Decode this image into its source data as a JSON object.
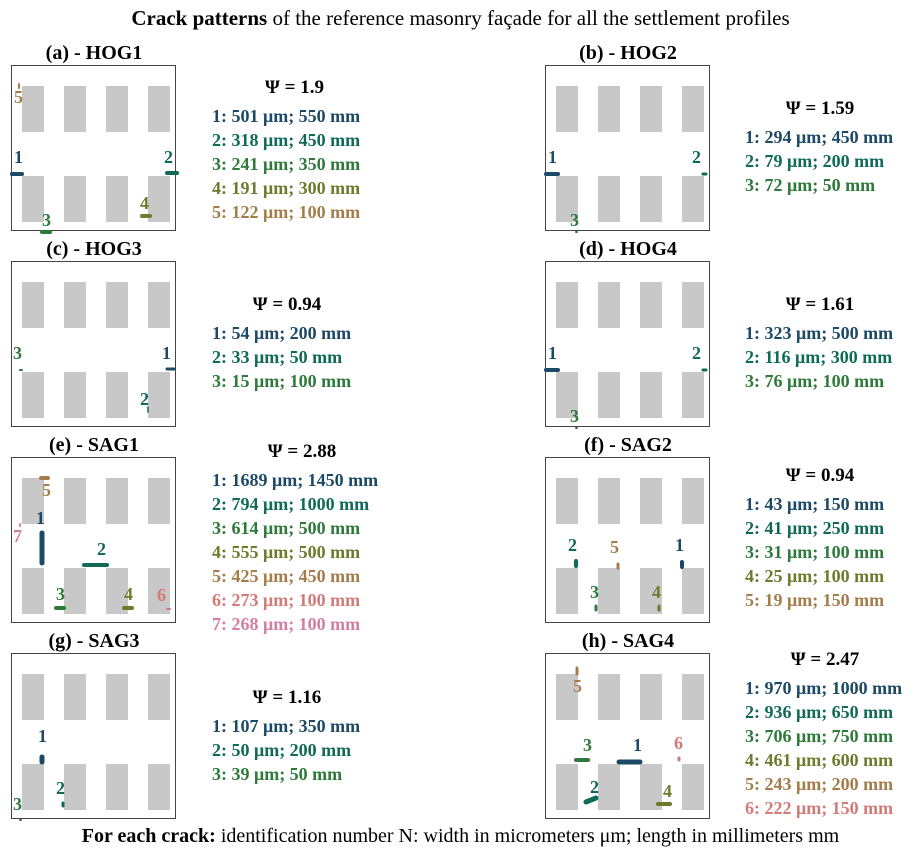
{
  "figure": {
    "title_bold": "Crack patterns",
    "title_rest": " of the reference masonry façade for all the settlement profiles",
    "footer_bold": "For each crack:",
    "footer_rest": " identification number N: width in micrometers μm; length in millimeters mm"
  },
  "colors": {
    "window": "#c8c8c8",
    "border": "#444444",
    "crack_palette": [
      "#1c4a66",
      "#0f6a57",
      "#2e7a3a",
      "#6e7a2c",
      "#a57d4a",
      "#d37b79",
      "#d47fa2"
    ]
  },
  "panels": [
    {
      "label": "(a) - HOG1",
      "psi": "Ψ = 1.9",
      "cracks": [
        {
          "id": "1",
          "color": "#1c4a66",
          "text": "1: 501 μm; 550 mm"
        },
        {
          "id": "2",
          "color": "#0f6a57",
          "text": "2: 318 μm; 450 mm"
        },
        {
          "id": "3",
          "color": "#2e7a3a",
          "text": "3: 241 μm; 350 mm"
        },
        {
          "id": "4",
          "color": "#6e7a2c",
          "text": "4: 191 μm; 300 mm"
        },
        {
          "id": "5",
          "color": "#a57d4a",
          "text": "5: 122 μm; 100 mm"
        }
      ]
    },
    {
      "label": "(b) - HOG2",
      "psi": "Ψ = 1.59",
      "cracks": [
        {
          "id": "1",
          "color": "#1c4a66",
          "text": "1: 294 μm; 450 mm"
        },
        {
          "id": "2",
          "color": "#0f6a57",
          "text": "2: 79 μm; 200 mm"
        },
        {
          "id": "3",
          "color": "#2e7a3a",
          "text": "3: 72 μm; 50 mm"
        }
      ]
    },
    {
      "label": "(c) - HOG3",
      "psi": "Ψ = 0.94",
      "cracks": [
        {
          "id": "1",
          "color": "#1c4a66",
          "text": "1: 54 μm; 200 mm"
        },
        {
          "id": "2",
          "color": "#0f6a57",
          "text": "2: 33 μm; 50 mm"
        },
        {
          "id": "3",
          "color": "#2e7a3a",
          "text": "3: 15 μm; 100 mm"
        }
      ]
    },
    {
      "label": "(d) - HOG4",
      "psi": "Ψ = 1.61",
      "cracks": [
        {
          "id": "1",
          "color": "#1c4a66",
          "text": "1: 323 μm; 500 mm"
        },
        {
          "id": "2",
          "color": "#0f6a57",
          "text": "2: 116 μm; 300 mm"
        },
        {
          "id": "3",
          "color": "#2e7a3a",
          "text": "3: 76 μm; 100 mm"
        }
      ]
    },
    {
      "label": "(e) - SAG1",
      "psi": "Ψ = 2.88",
      "cracks": [
        {
          "id": "1",
          "color": "#1c4a66",
          "text": "1: 1689 μm; 1450 mm"
        },
        {
          "id": "2",
          "color": "#0f6a57",
          "text": "2: 794 μm; 1000 mm"
        },
        {
          "id": "3",
          "color": "#2e7a3a",
          "text": "3: 614 μm; 500 mm"
        },
        {
          "id": "4",
          "color": "#6e7a2c",
          "text": "4: 555 μm; 500 mm"
        },
        {
          "id": "5",
          "color": "#a57d4a",
          "text": "5: 425 μm; 450 mm"
        },
        {
          "id": "6",
          "color": "#d37b79",
          "text": "6: 273 μm; 100 mm"
        },
        {
          "id": "7",
          "color": "#d47fa2",
          "text": "7: 268 μm; 100 mm"
        }
      ]
    },
    {
      "label": "(f) - SAG2",
      "psi": "Ψ = 0.94",
      "cracks": [
        {
          "id": "1",
          "color": "#1c4a66",
          "text": "1: 43 μm; 150 mm"
        },
        {
          "id": "2",
          "color": "#0f6a57",
          "text": "2: 41 μm; 250 mm"
        },
        {
          "id": "3",
          "color": "#2e7a3a",
          "text": "3: 31 μm; 100 mm"
        },
        {
          "id": "4",
          "color": "#6e7a2c",
          "text": "4: 25 μm; 100 mm"
        },
        {
          "id": "5",
          "color": "#a57d4a",
          "text": "5: 19 μm; 150 mm"
        }
      ]
    },
    {
      "label": "(g) - SAG3",
      "psi": "Ψ = 1.16",
      "cracks": [
        {
          "id": "1",
          "color": "#1c4a66",
          "text": "1: 107 μm; 350 mm"
        },
        {
          "id": "2",
          "color": "#0f6a57",
          "text": "2: 50 μm; 200 mm"
        },
        {
          "id": "3",
          "color": "#2e7a3a",
          "text": "3: 39 μm; 50 mm"
        }
      ]
    },
    {
      "label": "(h) - SAG4",
      "psi": "Ψ = 2.47",
      "cracks": [
        {
          "id": "1",
          "color": "#1c4a66",
          "text": "1: 970 μm; 1000 mm"
        },
        {
          "id": "2",
          "color": "#0f6a57",
          "text": "2: 936 μm; 650 mm"
        },
        {
          "id": "3",
          "color": "#2e7a3a",
          "text": "3: 706 μm; 750 mm"
        },
        {
          "id": "4",
          "color": "#6e7a2c",
          "text": "4: 461 μm; 600 mm"
        },
        {
          "id": "5",
          "color": "#a57d4a",
          "text": "5: 243 μm; 200 mm"
        },
        {
          "id": "6",
          "color": "#d37b79",
          "text": "6: 222 μm; 150 mm"
        }
      ]
    }
  ]
}
